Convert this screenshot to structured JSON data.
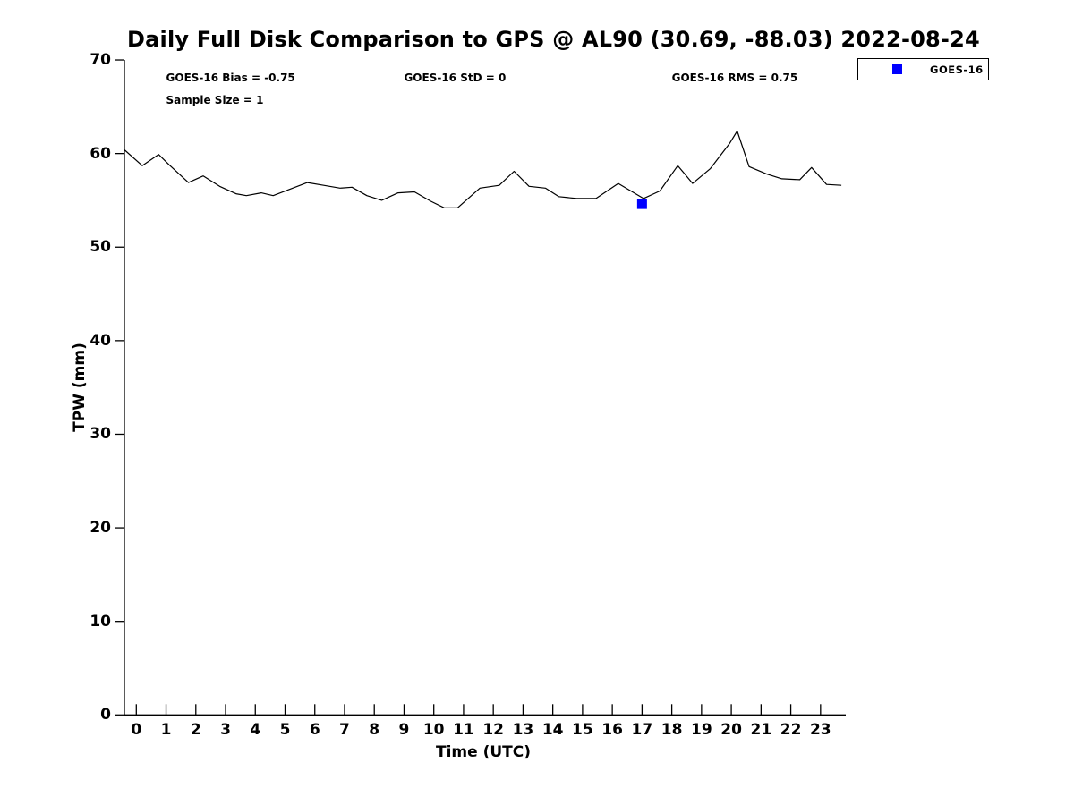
{
  "chart_data": {
    "type": "line",
    "title": "Daily Full Disk Comparison to GPS @ AL90 (30.69, -88.03) 2022-08-24",
    "xlabel": "Time (UTC)",
    "ylabel": "TPW (mm)",
    "xlim": [
      -0.4,
      23.85
    ],
    "ylim": [
      0,
      70
    ],
    "x_ticks": [
      0,
      1,
      2,
      3,
      4,
      5,
      6,
      7,
      8,
      9,
      10,
      11,
      12,
      13,
      14,
      15,
      16,
      17,
      18,
      19,
      20,
      21,
      22,
      23
    ],
    "y_ticks": [
      0,
      10,
      20,
      30,
      40,
      50,
      60,
      70
    ],
    "grid": false,
    "axis_color": "#000000",
    "background": "#ffffff",
    "annotations": [
      {
        "text": "GOES-16 Bias = -0.75",
        "x": 1,
        "y": 68.1
      },
      {
        "text": "GOES-16 StD = 0",
        "x": 9,
        "y": 68.1
      },
      {
        "text": "GOES-16 RMS = 0.75",
        "x": 18,
        "y": 68.1
      },
      {
        "text": "Sample Size = 1",
        "x": 1,
        "y": 65.7
      }
    ],
    "legend": {
      "position": "top-right",
      "entries": [
        {
          "label": "GOES-16",
          "marker": "square",
          "color": "#0000ff"
        }
      ]
    },
    "series": [
      {
        "name": "GPS",
        "type": "line",
        "color": "#000000",
        "points": [
          [
            -0.4,
            60.4
          ],
          [
            0.2,
            58.7
          ],
          [
            0.75,
            59.9
          ],
          [
            1.1,
            58.8
          ],
          [
            1.75,
            56.9
          ],
          [
            2.25,
            57.6
          ],
          [
            2.8,
            56.5
          ],
          [
            3.35,
            55.7
          ],
          [
            3.7,
            55.5
          ],
          [
            4.2,
            55.8
          ],
          [
            4.6,
            55.5
          ],
          [
            5.75,
            56.9
          ],
          [
            6.3,
            56.6
          ],
          [
            6.85,
            56.3
          ],
          [
            7.25,
            56.4
          ],
          [
            7.75,
            55.5
          ],
          [
            8.25,
            55.0
          ],
          [
            8.8,
            55.8
          ],
          [
            9.35,
            55.9
          ],
          [
            9.9,
            54.9
          ],
          [
            10.35,
            54.2
          ],
          [
            10.8,
            54.2
          ],
          [
            11.55,
            56.3
          ],
          [
            12.2,
            56.6
          ],
          [
            12.7,
            58.1
          ],
          [
            13.2,
            56.5
          ],
          [
            13.75,
            56.3
          ],
          [
            14.2,
            55.4
          ],
          [
            14.8,
            55.2
          ],
          [
            15.45,
            55.2
          ],
          [
            16.2,
            56.8
          ],
          [
            17.05,
            55.2
          ],
          [
            17.6,
            56.0
          ],
          [
            18.2,
            58.7
          ],
          [
            18.7,
            56.8
          ],
          [
            19.3,
            58.4
          ],
          [
            19.95,
            61.1
          ],
          [
            20.2,
            62.4
          ],
          [
            20.6,
            58.6
          ],
          [
            21.2,
            57.8
          ],
          [
            21.7,
            57.3
          ],
          [
            22.3,
            57.2
          ],
          [
            22.7,
            58.5
          ],
          [
            23.2,
            56.7
          ],
          [
            23.7,
            56.6
          ]
        ]
      },
      {
        "name": "GOES-16",
        "type": "scatter",
        "marker": "square",
        "marker_size": 11,
        "color": "#0000ff",
        "points": [
          [
            17.0,
            54.6
          ]
        ]
      }
    ]
  }
}
